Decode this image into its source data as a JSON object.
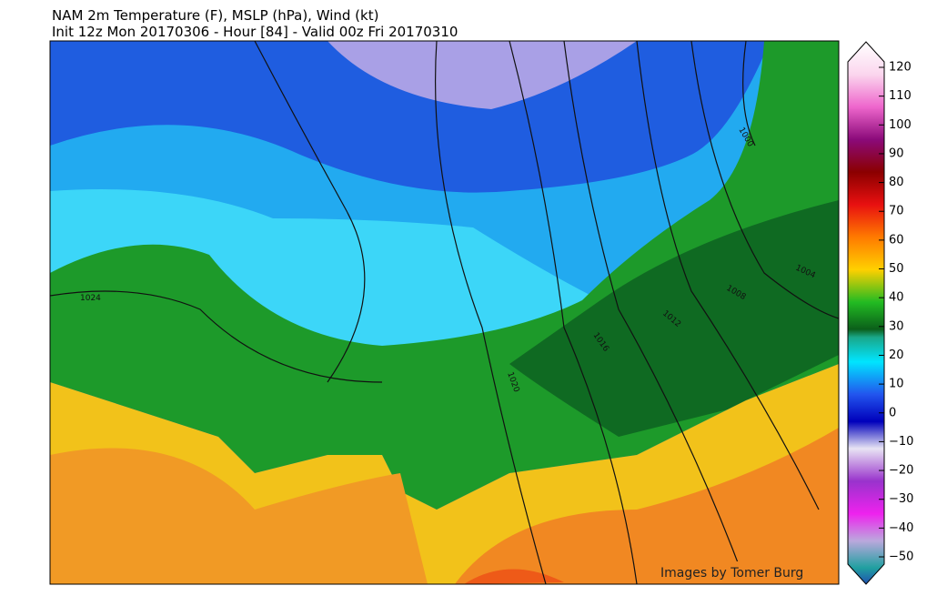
{
  "header": {
    "title": "NAM 2m Temperature (F), MSLP (hPa), Wind (kt)",
    "subtitle": "Init 12z Mon 20170306 - Hour [84] - Valid 00z Fri 20170310"
  },
  "colorbar": {
    "lim": [
      -50,
      120
    ],
    "ticks": [
      120,
      110,
      100,
      90,
      80,
      70,
      60,
      50,
      40,
      30,
      20,
      10,
      0,
      {
        "value": -10,
        "label": "−10"
      },
      {
        "value": -20,
        "label": "−20"
      },
      {
        "value": -30,
        "label": "−30"
      },
      {
        "value": -40,
        "label": "−40"
      },
      {
        "value": -50,
        "label": "−50"
      }
    ]
  },
  "isobar_labels": [
    1024,
    1020,
    1016,
    1012,
    1008,
    1004,
    1000
  ],
  "credit": "Images by Tomer Burg"
}
